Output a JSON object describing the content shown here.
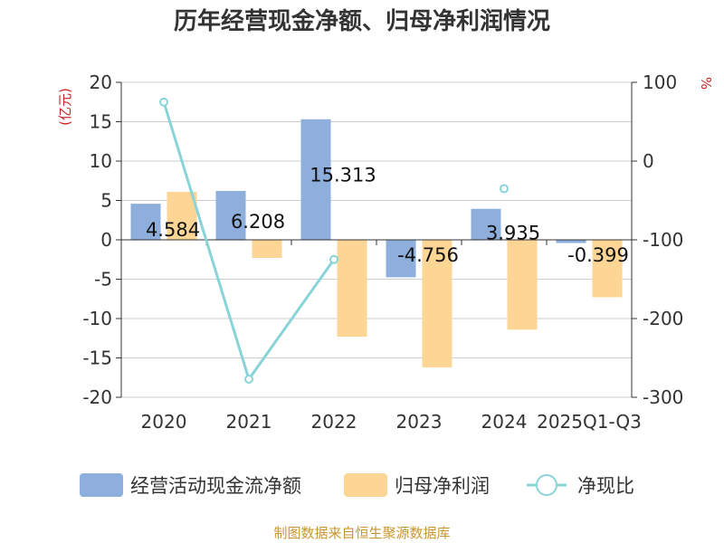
{
  "chart_data": {
    "type": "bar",
    "title": "历年经营现金净额、归母净利润情况",
    "categories": [
      "2020",
      "2021",
      "2022",
      "2023",
      "2024",
      "2025Q1-Q3"
    ],
    "series": [
      {
        "name": "经营活动现金流净额",
        "axis": "left",
        "color": "#8eaedb",
        "values": [
          4.584,
          6.208,
          15.313,
          -4.756,
          3.935,
          -0.399
        ],
        "labels": [
          "4.584",
          "6.208",
          "15.313",
          "-4.756",
          "3.935",
          "-0.399"
        ]
      },
      {
        "name": "归母净利润",
        "axis": "left",
        "color": "#fdd696",
        "values": [
          6.1,
          -2.3,
          -12.3,
          -16.2,
          -11.4,
          -7.3
        ]
      },
      {
        "name": "净现比",
        "axis": "right",
        "type": "line",
        "color": "#88d4d8",
        "values": [
          75,
          -277,
          -125,
          null,
          -35,
          null
        ]
      }
    ],
    "y_left": {
      "unit": "(亿元)",
      "ylim": [
        -20,
        20
      ],
      "ticks": [
        "20",
        "15",
        "10",
        "5",
        "0",
        "-5",
        "-10",
        "-15",
        "-20"
      ]
    },
    "y_right": {
      "unit": "%",
      "ylim": [
        -300,
        100
      ],
      "ticks": [
        "100",
        "0",
        "-100",
        "-200",
        "-300"
      ]
    },
    "grid": true,
    "legend_position": "bottom",
    "source": "制图数据来自恒生聚源数据库"
  }
}
